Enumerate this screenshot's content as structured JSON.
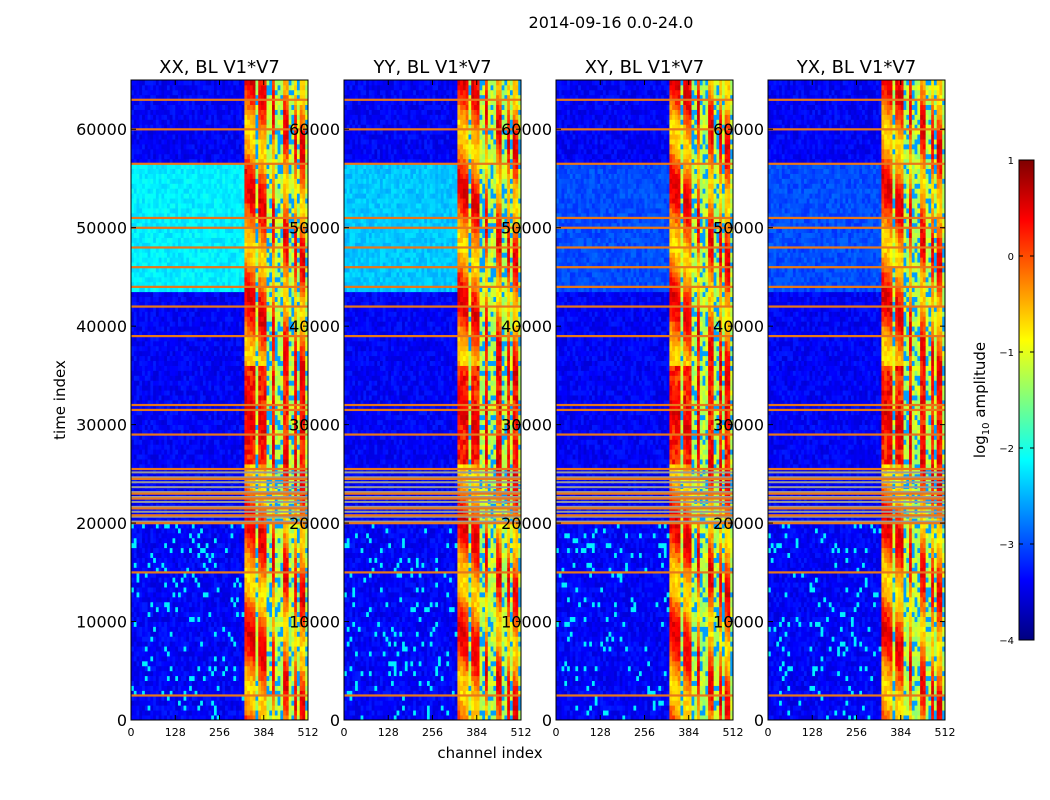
{
  "figure": {
    "suptitle": "2014-09-16 0.0-24.0"
  },
  "colors": {
    "jet": [
      "#00007f",
      "#0000ff",
      "#007fff",
      "#00ffff",
      "#7fff7f",
      "#ffff00",
      "#ff7f00",
      "#ff0000",
      "#7f0000"
    ],
    "flag_line": "#e8771a",
    "gap_band": "#9a9a9a"
  },
  "chart_data": [
    {
      "type": "heatmap",
      "title": "XX, BL V1*V7",
      "xlabel": "",
      "ylabel": "time index",
      "xlim": [
        0,
        512
      ],
      "ylim": [
        0,
        65000
      ],
      "xticks": [
        0,
        128,
        256,
        384,
        512
      ],
      "yticks": [
        0,
        10000,
        20000,
        30000,
        40000,
        50000,
        60000
      ],
      "show_ytick_labels": true,
      "upper_block_log_amplitude": -2.2
    },
    {
      "type": "heatmap",
      "title": "YY, BL V1*V7",
      "xlabel": "channel index",
      "ylabel": "",
      "xlim": [
        0,
        512
      ],
      "ylim": [
        0,
        65000
      ],
      "xticks": [
        0,
        128,
        256,
        384,
        512
      ],
      "yticks": [
        0,
        10000,
        20000,
        30000,
        40000,
        50000,
        60000
      ],
      "show_ytick_labels": true,
      "upper_block_log_amplitude": -2.4
    },
    {
      "type": "heatmap",
      "title": "XY, BL V1*V7",
      "xlabel": "",
      "ylabel": "",
      "xlim": [
        0,
        512
      ],
      "ylim": [
        0,
        65000
      ],
      "xticks": [
        0,
        128,
        256,
        384,
        512
      ],
      "yticks": [
        0,
        10000,
        20000,
        30000,
        40000,
        50000,
        60000
      ],
      "show_ytick_labels": true,
      "upper_block_log_amplitude": -3.0
    },
    {
      "type": "heatmap",
      "title": "YX, BL V1*V7",
      "xlabel": "",
      "ylabel": "",
      "xlim": [
        0,
        512
      ],
      "ylim": [
        0,
        65000
      ],
      "xticks": [
        0,
        128,
        256,
        384,
        512
      ],
      "yticks": [
        0,
        10000,
        20000,
        30000,
        40000,
        50000,
        60000
      ],
      "show_ytick_labels": true,
      "upper_block_log_amplitude": -3.0
    }
  ],
  "colorbar": {
    "label": "log",
    "label_sub": "10",
    "label_rest": " amplitude",
    "range": [
      -4,
      1
    ],
    "ticks": [
      {
        "v": 1,
        "t": "1"
      },
      {
        "v": 0,
        "t": "0"
      },
      {
        "v": -1,
        "t": "−1"
      },
      {
        "v": -2,
        "t": "−2"
      },
      {
        "v": -3,
        "t": "−3"
      },
      {
        "v": -4,
        "t": "−4"
      }
    ]
  },
  "heatmap_model": {
    "background_log_amplitude": -3.4,
    "signal_band_channels": [
      325,
      512
    ],
    "signal_band_log_amplitude": -1.2,
    "bright_columns_channels": [
      [
        330,
        362
      ],
      [
        372,
        392
      ],
      [
        405,
        418
      ],
      [
        440,
        458
      ],
      [
        470,
        482
      ],
      [
        492,
        505
      ]
    ],
    "flagged_time_rows": [
      2500,
      15000,
      20000,
      20800,
      21500,
      22500,
      23000,
      24500,
      25500,
      29000,
      31500,
      32000,
      39000,
      42000,
      44000,
      46000,
      48000,
      50000,
      51000,
      56500,
      60000,
      63000
    ],
    "gap_time_range": [
      20000,
      25500
    ],
    "upper_block_time_range": [
      43500,
      56500
    ]
  }
}
